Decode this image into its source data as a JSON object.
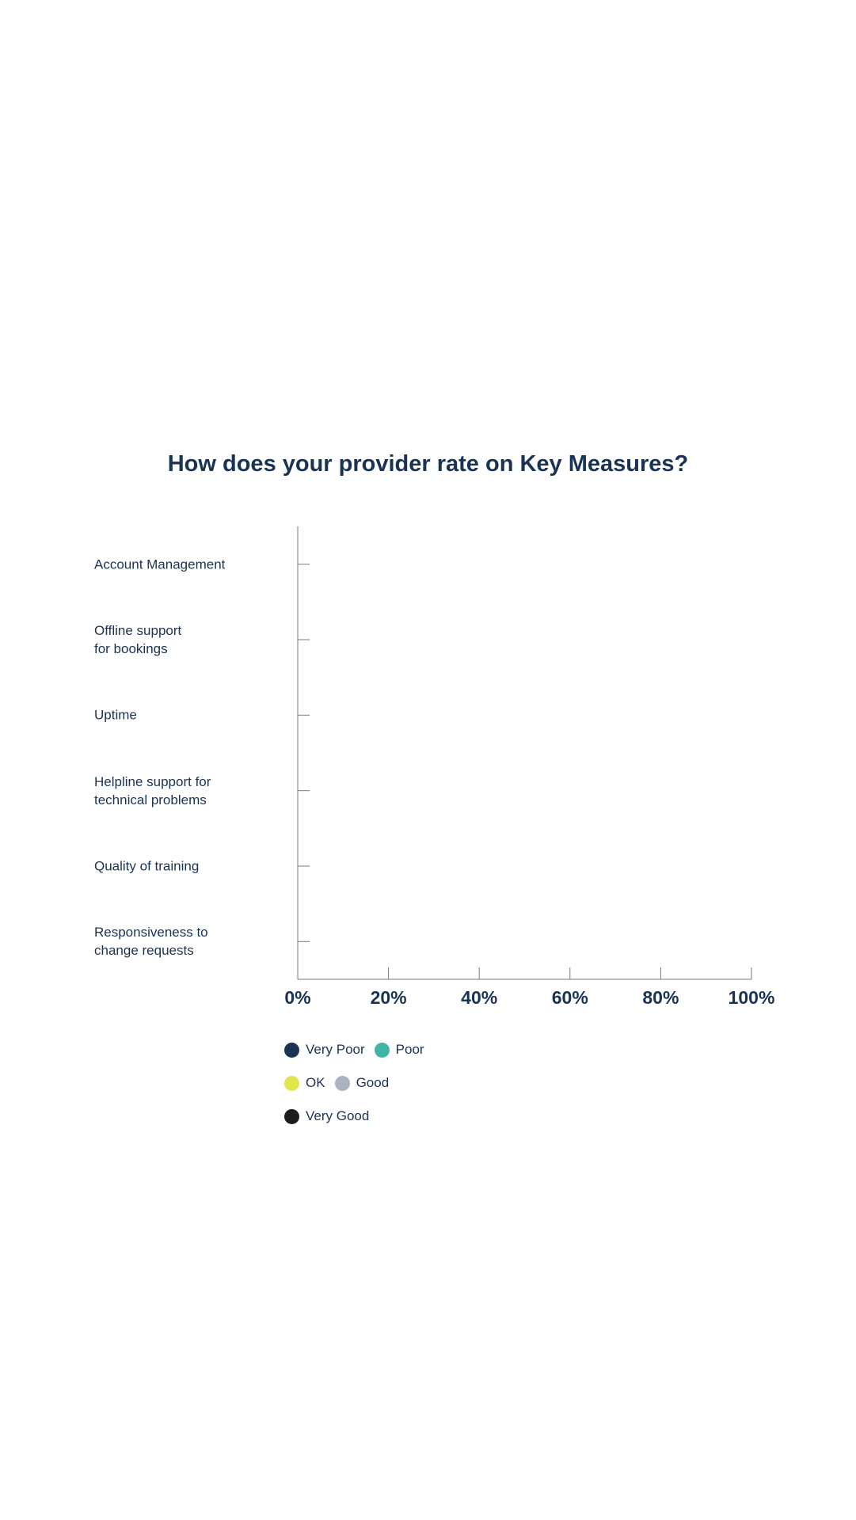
{
  "chart_data": {
    "type": "bar",
    "orientation": "horizontal",
    "stacked": true,
    "title": "How does your provider rate on Key Measures?",
    "categories": [
      "Account Management",
      "Offline support\nfor bookings",
      "Uptime",
      "Helpline support for\ntechnical problems",
      "Quality of training",
      "Responsiveness to\nchange requests"
    ],
    "series": [
      {
        "name": "Very Poor",
        "color": "#1a3352",
        "values": [
          null,
          null,
          null,
          null,
          null,
          null
        ]
      },
      {
        "name": "Poor",
        "color": "#3db6a7",
        "values": [
          null,
          null,
          null,
          null,
          null,
          null
        ]
      },
      {
        "name": "OK",
        "color": "#e2e64c",
        "values": [
          null,
          null,
          null,
          null,
          null,
          null
        ]
      },
      {
        "name": "Good",
        "color": "#aab3bf",
        "values": [
          null,
          null,
          null,
          null,
          null,
          null
        ]
      },
      {
        "name": "Very Good",
        "color": "#1d1d1b",
        "values": [
          null,
          null,
          null,
          null,
          null,
          null
        ]
      }
    ],
    "xlim": [
      0,
      100
    ],
    "xticks": [
      {
        "value": 0,
        "label": "0%"
      },
      {
        "value": 20,
        "label": "20%"
      },
      {
        "value": 40,
        "label": "40%"
      },
      {
        "value": 60,
        "label": "60%"
      },
      {
        "value": 80,
        "label": "80%"
      },
      {
        "value": 100,
        "label": "100%"
      }
    ]
  }
}
